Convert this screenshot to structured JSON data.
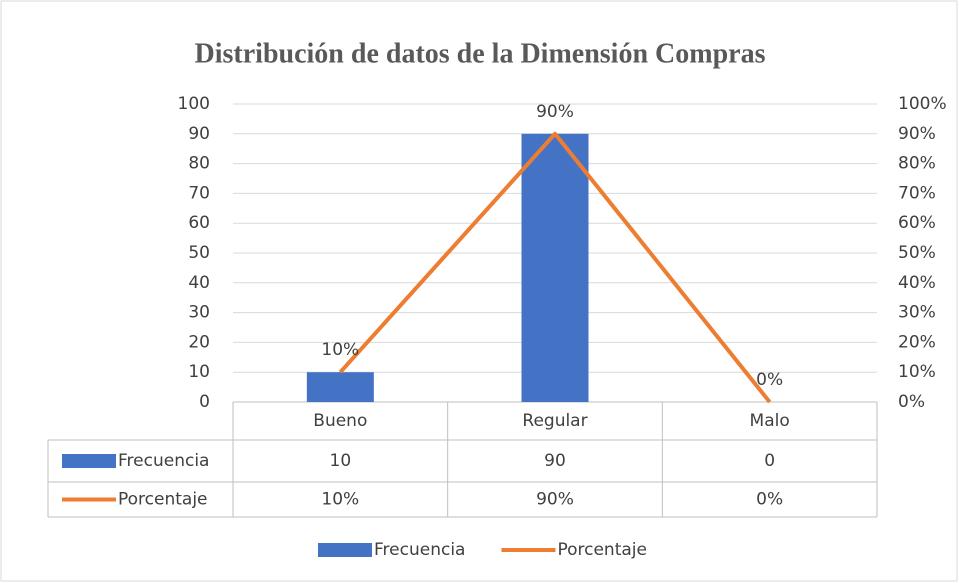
{
  "chart_data": {
    "type": "bar",
    "title": "Distribución de datos de la Dimensión Compras",
    "categories": [
      "Bueno",
      "Regular",
      "Malo"
    ],
    "series": [
      {
        "name": "Frecuencia",
        "type": "bar",
        "color": "#4472c4",
        "values": [
          10,
          90,
          0
        ]
      },
      {
        "name": "Porcentaje",
        "type": "line",
        "axis": "y2",
        "color": "#ed7d31",
        "values": [
          10,
          90,
          0
        ],
        "value_labels": [
          "10%",
          "90%",
          "0%"
        ]
      }
    ],
    "ylim": [
      0,
      100
    ],
    "yticks": [
      0,
      10,
      20,
      30,
      40,
      50,
      60,
      70,
      80,
      90,
      100
    ],
    "y2lim": [
      0,
      100
    ],
    "y2ticks": [
      {
        "value": 0,
        "label": "0%"
      },
      {
        "value": 10,
        "label": "10%"
      },
      {
        "value": 20,
        "label": "20%"
      },
      {
        "value": 30,
        "label": "30%"
      },
      {
        "value": 40,
        "label": "40%"
      },
      {
        "value": 50,
        "label": "50%"
      },
      {
        "value": 60,
        "label": "60%"
      },
      {
        "value": 70,
        "label": "70%"
      },
      {
        "value": 80,
        "label": "80%"
      },
      {
        "value": 90,
        "label": "90%"
      },
      {
        "value": 100,
        "label": "100%"
      }
    ],
    "grid": true,
    "data_table": true,
    "legend": "bottom"
  }
}
